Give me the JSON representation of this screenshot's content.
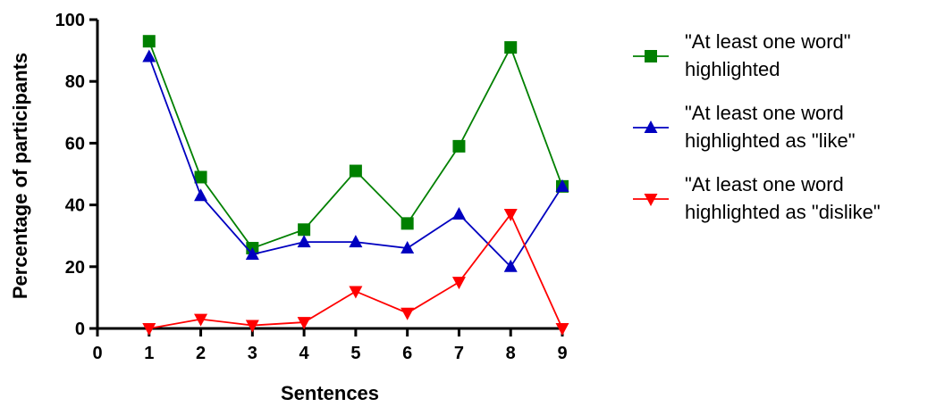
{
  "chart_data": {
    "type": "line",
    "title": "",
    "xlabel": "Sentences",
    "ylabel": "Percentage of participants",
    "xlim": [
      0,
      9
    ],
    "ylim": [
      0,
      100
    ],
    "xticks": [
      0,
      1,
      2,
      3,
      4,
      5,
      6,
      7,
      8,
      9
    ],
    "yticks": [
      0,
      20,
      40,
      60,
      80,
      100
    ],
    "grid": false,
    "legend_position": "right",
    "x": [
      1,
      2,
      3,
      4,
      5,
      6,
      7,
      8,
      9
    ],
    "series": [
      {
        "name_lines": [
          "\"At least one word\"",
          "highlighted"
        ],
        "color": "#008000",
        "marker": "square",
        "values": [
          93,
          49,
          26,
          32,
          51,
          34,
          59,
          91,
          46
        ]
      },
      {
        "name_lines": [
          "\"At least one word",
          "highlighted as \"like\""
        ],
        "color": "#0000c0",
        "marker": "triangle-up",
        "values": [
          88,
          43,
          24,
          28,
          28,
          26,
          37,
          20,
          46
        ]
      },
      {
        "name_lines": [
          "\"At least one word",
          "highlighted as \"dislike\""
        ],
        "color": "#ff0000",
        "marker": "triangle-down",
        "values": [
          0,
          3,
          1,
          2,
          12,
          5,
          15,
          37,
          0
        ]
      }
    ]
  }
}
